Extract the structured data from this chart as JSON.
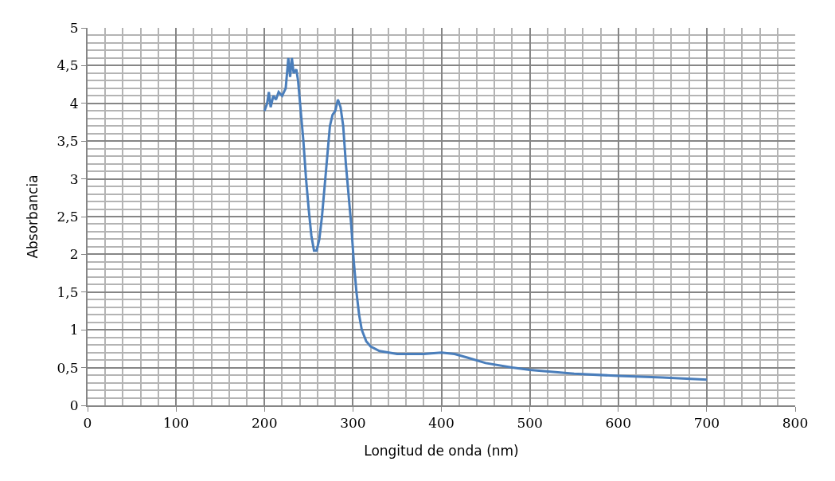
{
  "chart_data": {
    "type": "line",
    "xlabel": "Longitud de onda (nm)",
    "ylabel": "Absorbancia",
    "xlim": [
      0,
      800
    ],
    "xticks": [
      0,
      100,
      200,
      300,
      400,
      500,
      600,
      700,
      800
    ],
    "ylim": [
      0,
      5
    ],
    "yticks": [
      {
        "value": 0,
        "label": "0"
      },
      {
        "value": 0.5,
        "label": "0,5"
      },
      {
        "value": 1,
        "label": "1"
      },
      {
        "value": 1.5,
        "label": "1,5"
      },
      {
        "value": 2,
        "label": "2"
      },
      {
        "value": 2.5,
        "label": "2,5"
      },
      {
        "value": 3,
        "label": "3"
      },
      {
        "value": 3.5,
        "label": "3,5"
      },
      {
        "value": 4,
        "label": "4"
      },
      {
        "value": 4.5,
        "label": "4,5"
      },
      {
        "value": 5,
        "label": "5"
      }
    ],
    "grid": true,
    "marker": "none",
    "line_style": "solid",
    "series": [
      {
        "color": "#4a7ebb",
        "x": [
          200,
          203,
          205,
          207,
          210,
          213,
          216,
          220,
          224,
          227,
          229,
          231,
          233,
          236,
          238,
          241,
          244,
          247,
          250,
          253,
          256,
          259,
          262,
          265,
          268,
          271,
          274,
          277,
          280,
          283,
          286,
          289,
          292,
          295,
          298,
          301,
          304,
          307,
          310,
          315,
          320,
          330,
          350,
          380,
          400,
          415,
          430,
          450,
          480,
          500,
          550,
          600,
          650,
          700
        ],
        "values": [
          3.9,
          4.0,
          4.15,
          3.95,
          4.1,
          4.05,
          4.15,
          4.1,
          4.2,
          4.6,
          4.35,
          4.6,
          4.4,
          4.45,
          4.3,
          3.9,
          3.5,
          3.0,
          2.6,
          2.25,
          2.05,
          2.05,
          2.2,
          2.5,
          2.9,
          3.3,
          3.7,
          3.85,
          3.9,
          4.05,
          3.95,
          3.7,
          3.2,
          2.8,
          2.4,
          1.9,
          1.5,
          1.2,
          1.0,
          0.85,
          0.78,
          0.72,
          0.68,
          0.68,
          0.7,
          0.68,
          0.63,
          0.56,
          0.5,
          0.47,
          0.42,
          0.39,
          0.37,
          0.34
        ]
      }
    ]
  }
}
